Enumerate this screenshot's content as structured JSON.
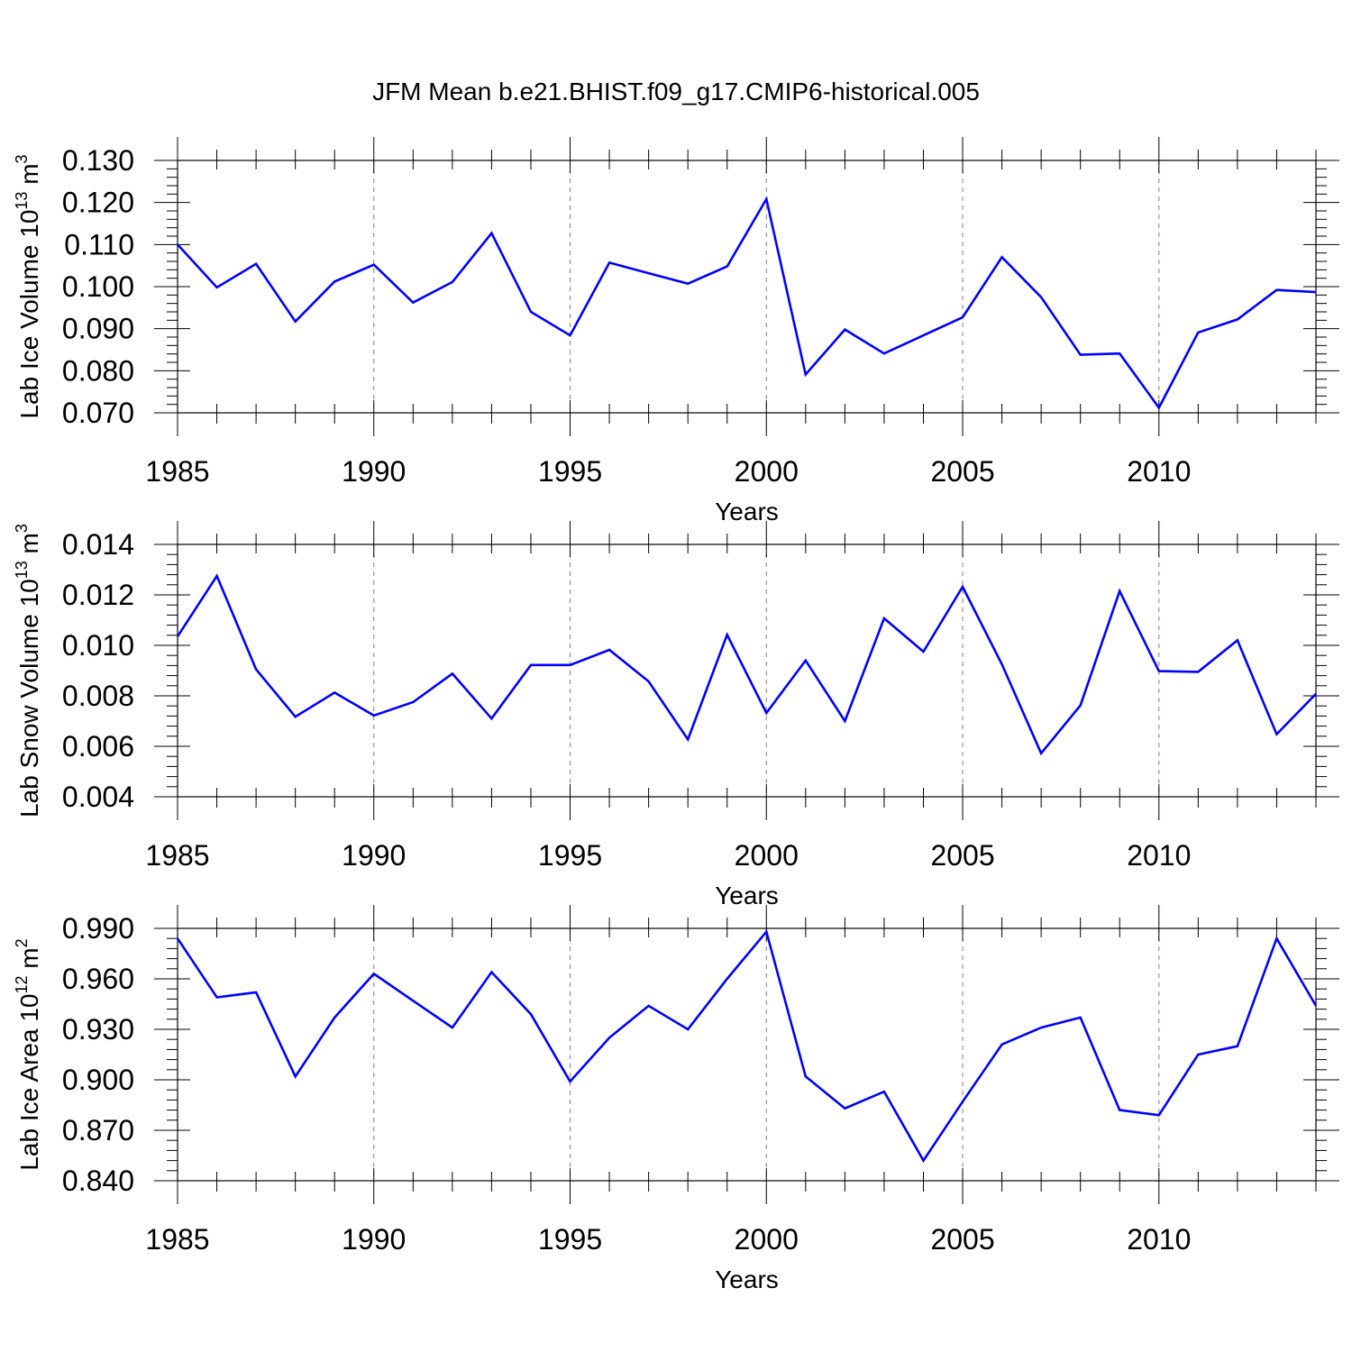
{
  "title": "JFM Mean b.e21.BHIST.f09_g17.CMIP6-historical.005",
  "colors": {
    "series": "#0000ff",
    "axes": "#000000",
    "grid": "#808080",
    "background": "#ffffff"
  },
  "chart_data": [
    {
      "type": "line",
      "title": "JFM Mean b.e21.BHIST.f09_g17.CMIP6-historical.005",
      "xlabel": "Years",
      "ylabel": {
        "text": "Lab Ice Volume 10",
        "exp": "13",
        "unit": " m",
        "unit_exp": "3"
      },
      "xlim": [
        1985,
        2014
      ],
      "ylim": [
        0.07,
        0.13
      ],
      "xticks": [
        "1985",
        "1990",
        "1995",
        "2000",
        "2005",
        "2010"
      ],
      "yticks": [
        "0.070",
        "0.080",
        "0.090",
        "0.100",
        "0.110",
        "0.120",
        "0.130"
      ],
      "grid": "vertical dashed at major x ticks",
      "x": [
        1985,
        1986,
        1987,
        1988,
        1989,
        1990,
        1991,
        1992,
        1993,
        1994,
        1995,
        1996,
        1997,
        1998,
        1999,
        2000,
        2001,
        2002,
        2003,
        2004,
        2005,
        2006,
        2007,
        2008,
        2009,
        2010,
        2011,
        2012,
        2013,
        2014
      ],
      "series": [
        {
          "name": "Lab Ice Volume",
          "values": [
            0.11,
            0.0998,
            0.1054,
            0.0917,
            0.1012,
            0.1052,
            0.0962,
            0.1011,
            0.1127,
            0.094,
            0.0884,
            0.1057,
            0.1032,
            0.1007,
            0.1048,
            0.1208,
            0.0791,
            0.0898,
            0.0841,
            0.0884,
            0.0927,
            0.107,
            0.0975,
            0.0838,
            0.0841,
            0.0712,
            0.0891,
            0.0922,
            0.0992,
            0.0987
          ]
        }
      ]
    },
    {
      "type": "line",
      "xlabel": "Years",
      "ylabel": {
        "text": "Lab Snow Volume 10",
        "exp": "13",
        "unit": " m",
        "unit_exp": "3"
      },
      "xlim": [
        1985,
        2014
      ],
      "ylim": [
        0.004,
        0.014
      ],
      "xticks": [
        "1985",
        "1990",
        "1995",
        "2000",
        "2005",
        "2010"
      ],
      "yticks": [
        "0.004",
        "0.006",
        "0.008",
        "0.010",
        "0.012",
        "0.014"
      ],
      "grid": "vertical dashed at major x ticks",
      "x": [
        1985,
        1986,
        1987,
        1988,
        1989,
        1990,
        1991,
        1992,
        1993,
        1994,
        1995,
        1996,
        1997,
        1998,
        1999,
        2000,
        2001,
        2002,
        2003,
        2004,
        2005,
        2006,
        2007,
        2008,
        2009,
        2010,
        2011,
        2012,
        2013,
        2014
      ],
      "series": [
        {
          "name": "Lab Snow Volume",
          "values": [
            0.01035,
            0.01275,
            0.00905,
            0.00717,
            0.00813,
            0.00722,
            0.00775,
            0.00888,
            0.0071,
            0.00922,
            0.00922,
            0.00982,
            0.00857,
            0.00627,
            0.01042,
            0.00732,
            0.0094,
            0.007,
            0.01107,
            0.00975,
            0.01232,
            0.00925,
            0.00572,
            0.00762,
            0.01215,
            0.00898,
            0.00895,
            0.0102,
            0.00648,
            0.00808
          ]
        }
      ]
    },
    {
      "type": "line",
      "xlabel": "Years",
      "ylabel": {
        "text": "Lab Ice Area 10",
        "exp": "12",
        "unit": " m",
        "unit_exp": "2"
      },
      "xlim": [
        1985,
        2014
      ],
      "ylim": [
        0.84,
        0.99
      ],
      "xticks": [
        "1985",
        "1990",
        "1995",
        "2000",
        "2005",
        "2010"
      ],
      "yticks": [
        "0.840",
        "0.870",
        "0.900",
        "0.930",
        "0.960",
        "0.990"
      ],
      "grid": "vertical dashed at major x ticks",
      "x": [
        1985,
        1986,
        1987,
        1988,
        1989,
        1990,
        1991,
        1992,
        1993,
        1994,
        1995,
        1996,
        1997,
        1998,
        1999,
        2000,
        2001,
        2002,
        2003,
        2004,
        2005,
        2006,
        2007,
        2008,
        2009,
        2010,
        2011,
        2012,
        2013,
        2014
      ],
      "series": [
        {
          "name": "Lab Ice Area",
          "values": [
            0.984,
            0.949,
            0.952,
            0.902,
            0.937,
            0.963,
            0.947,
            0.931,
            0.964,
            0.939,
            0.899,
            0.925,
            0.944,
            0.93,
            0.96,
            0.988,
            0.902,
            0.883,
            0.893,
            0.852,
            0.887,
            0.921,
            0.931,
            0.937,
            0.882,
            0.879,
            0.915,
            0.92,
            0.984,
            0.944
          ]
        }
      ]
    }
  ]
}
